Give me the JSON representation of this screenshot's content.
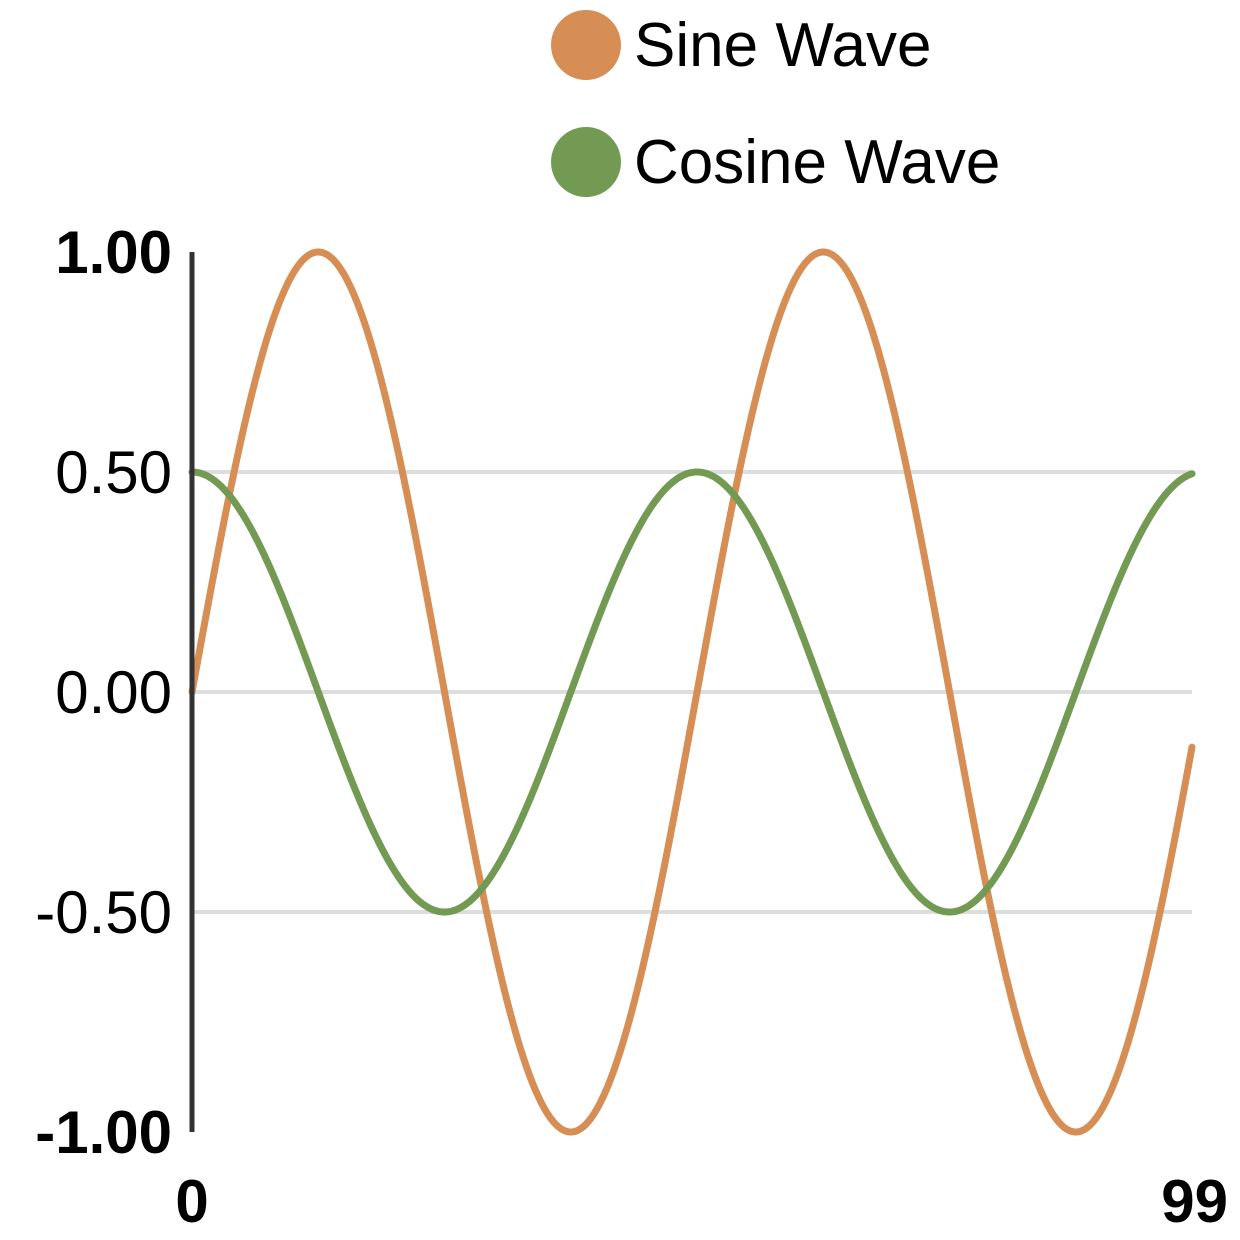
{
  "chart_data": {
    "type": "line",
    "x": {
      "min": 0,
      "max": 99,
      "tick_labels": [
        "0",
        "99"
      ]
    },
    "ylim": [
      -1,
      1
    ],
    "y_ticks": [
      {
        "value": 1.0,
        "label": "1.00",
        "bold": true
      },
      {
        "value": 0.5,
        "label": "0.50",
        "bold": false
      },
      {
        "value": 0.0,
        "label": "0.00",
        "bold": false
      },
      {
        "value": -0.5,
        "label": "-0.50",
        "bold": false
      },
      {
        "value": -1.0,
        "label": "-1.00",
        "bold": true
      }
    ],
    "gridlines": [
      0.5,
      0.0,
      -0.5
    ],
    "legend_position": "top",
    "series": [
      {
        "name": "Sine Wave",
        "color": "#d68e55",
        "function": "sine",
        "amplitude": 1.0,
        "period": 50
      },
      {
        "name": "Cosine Wave",
        "color": "#739a52",
        "function": "cosine",
        "amplitude": 0.5,
        "period": 50
      }
    ],
    "axis_color": "#333333",
    "grid_color": "#dddddd"
  }
}
